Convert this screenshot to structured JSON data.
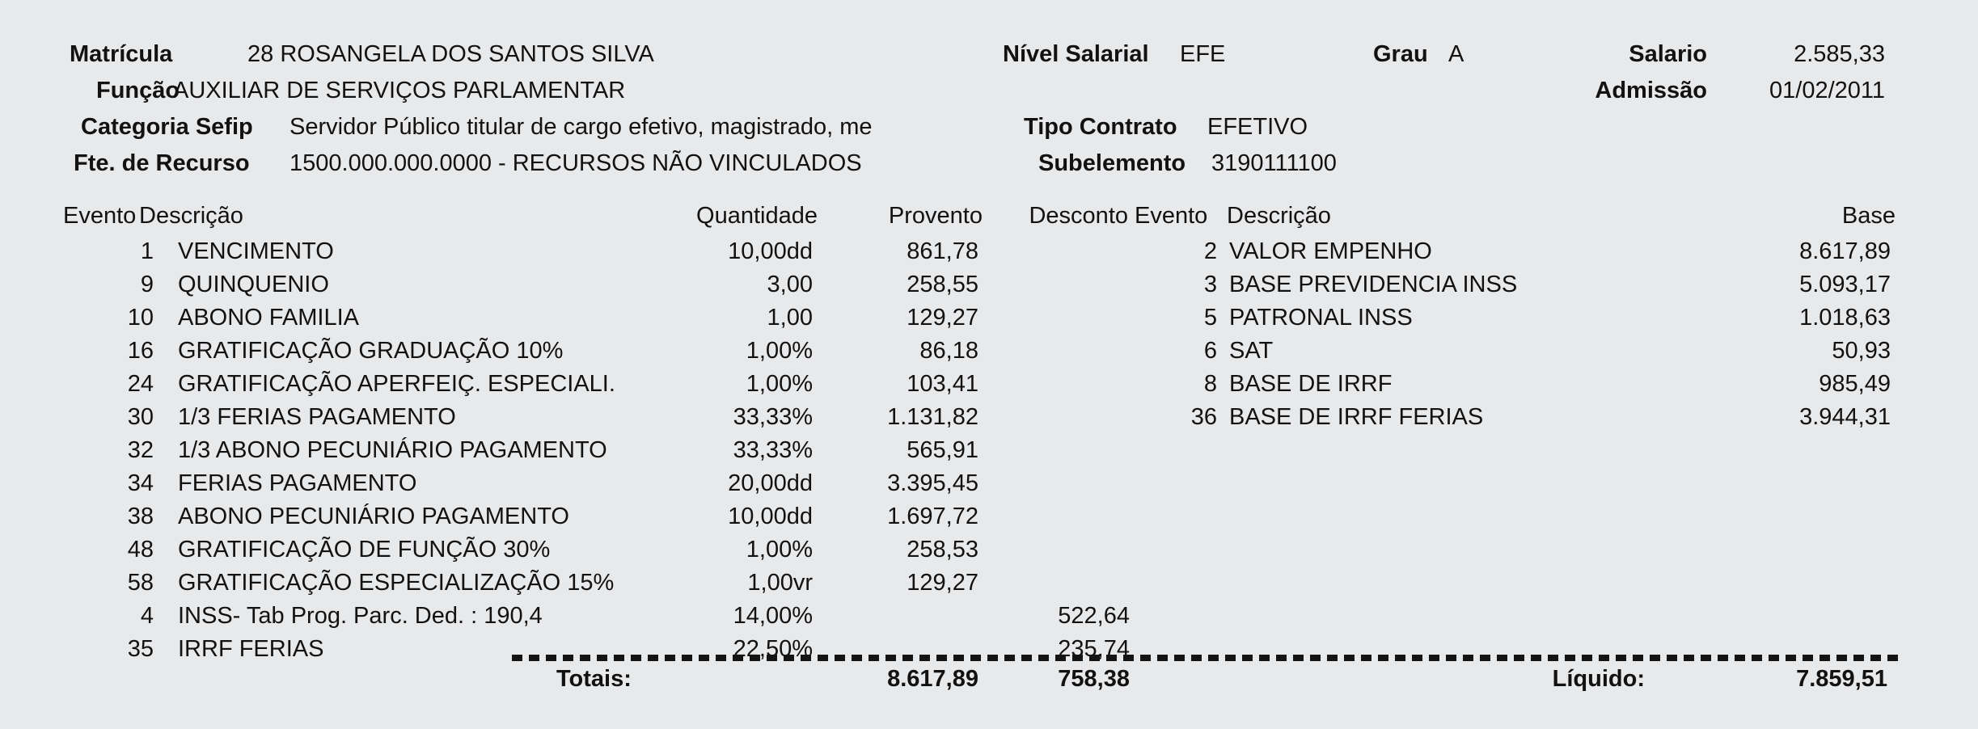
{
  "page": {
    "background_color": "#e8e9eb",
    "text_color": "#121212"
  },
  "header": {
    "matricula": {
      "label": "Matrícula",
      "value": "28 ROSANGELA DOS SANTOS SILVA"
    },
    "funcao": {
      "label": "Função",
      "value": "AUXILIAR DE SERVIÇOS PARLAMENTAR"
    },
    "categoria_sefip": {
      "label": "Categoria Sefip",
      "value": "Servidor Público titular de cargo efetivo, magistrado, me"
    },
    "fte_recurso": {
      "label": "Fte. de Recurso",
      "value": "1500.000.000.0000 - RECURSOS NÃO VINCULADOS"
    },
    "nivel_salarial": {
      "label": "Nível Salarial",
      "value": "EFE"
    },
    "grau": {
      "label": "Grau",
      "value": "A"
    },
    "salario": {
      "label": "Salario",
      "value": "2.585,33"
    },
    "admissao": {
      "label": "Admissão",
      "value": "01/02/2011"
    },
    "tipo_contrato": {
      "label": "Tipo Contrato",
      "value": "EFETIVO"
    },
    "subelemento": {
      "label": "Subelemento",
      "value": "3190111100"
    }
  },
  "events_table": {
    "headers": {
      "evento": "Evento",
      "descricao": "Descrição",
      "quantidade": "Quantidade",
      "provento": "Provento",
      "desconto": "Desconto",
      "evento_right": "Evento",
      "descricao_right": "Descrição",
      "base": "Base"
    },
    "left_rows": [
      {
        "evento": "1",
        "descricao": "VENCIMENTO",
        "quantidade": "10,00dd",
        "provento": "861,78",
        "desconto": ""
      },
      {
        "evento": "9",
        "descricao": "QUINQUENIO",
        "quantidade": "3,00",
        "provento": "258,55",
        "desconto": ""
      },
      {
        "evento": "10",
        "descricao": "ABONO FAMILIA",
        "quantidade": "1,00",
        "provento": "129,27",
        "desconto": ""
      },
      {
        "evento": "16",
        "descricao": "GRATIFICAÇÃO GRADUAÇÃO 10%",
        "quantidade": "1,00%",
        "provento": "86,18",
        "desconto": ""
      },
      {
        "evento": "24",
        "descricao": "GRATIFICAÇÃO APERFEIÇ. ESPECIALI.",
        "quantidade": "1,00%",
        "provento": "103,41",
        "desconto": ""
      },
      {
        "evento": "30",
        "descricao": "1/3 FERIAS PAGAMENTO",
        "quantidade": "33,33%",
        "provento": "1.131,82",
        "desconto": ""
      },
      {
        "evento": "32",
        "descricao": "1/3 ABONO PECUNIÁRIO PAGAMENTO",
        "quantidade": "33,33%",
        "provento": "565,91",
        "desconto": ""
      },
      {
        "evento": "34",
        "descricao": "FERIAS PAGAMENTO",
        "quantidade": "20,00dd",
        "provento": "3.395,45",
        "desconto": ""
      },
      {
        "evento": "38",
        "descricao": "ABONO PECUNIÁRIO PAGAMENTO",
        "quantidade": "10,00dd",
        "provento": "1.697,72",
        "desconto": ""
      },
      {
        "evento": "48",
        "descricao": "GRATIFICAÇÃO DE FUNÇÃO 30%",
        "quantidade": "1,00%",
        "provento": "258,53",
        "desconto": ""
      },
      {
        "evento": "58",
        "descricao": "GRATIFICAÇÃO ESPECIALIZAÇÃO 15%",
        "quantidade": "1,00vr",
        "provento": "129,27",
        "desconto": ""
      },
      {
        "evento": "4",
        "descricao": "INSS- Tab Prog. Parc. Ded. : 190,4",
        "quantidade": "14,00%",
        "provento": "",
        "desconto": "522,64"
      },
      {
        "evento": "35",
        "descricao": "IRRF FERIAS",
        "quantidade": "22,50%",
        "provento": "",
        "desconto": "235,74"
      }
    ],
    "right_rows": [
      {
        "evento": "2",
        "descricao": "VALOR EMPENHO",
        "base": "8.617,89"
      },
      {
        "evento": "3",
        "descricao": "BASE PREVIDENCIA INSS",
        "base": "5.093,17"
      },
      {
        "evento": "5",
        "descricao": "PATRONAL INSS",
        "base": "1.018,63"
      },
      {
        "evento": "6",
        "descricao": "SAT",
        "base": "50,93"
      },
      {
        "evento": "8",
        "descricao": "BASE DE IRRF",
        "base": "985,49"
      },
      {
        "evento": "36",
        "descricao": "BASE DE IRRF FERIAS",
        "base": "3.944,31"
      }
    ],
    "totals": {
      "label": "Totais:",
      "provento_total": "8.617,89",
      "desconto_total": "758,38",
      "liquido_label": "Líquido:",
      "liquido_value": "7.859,51"
    }
  }
}
